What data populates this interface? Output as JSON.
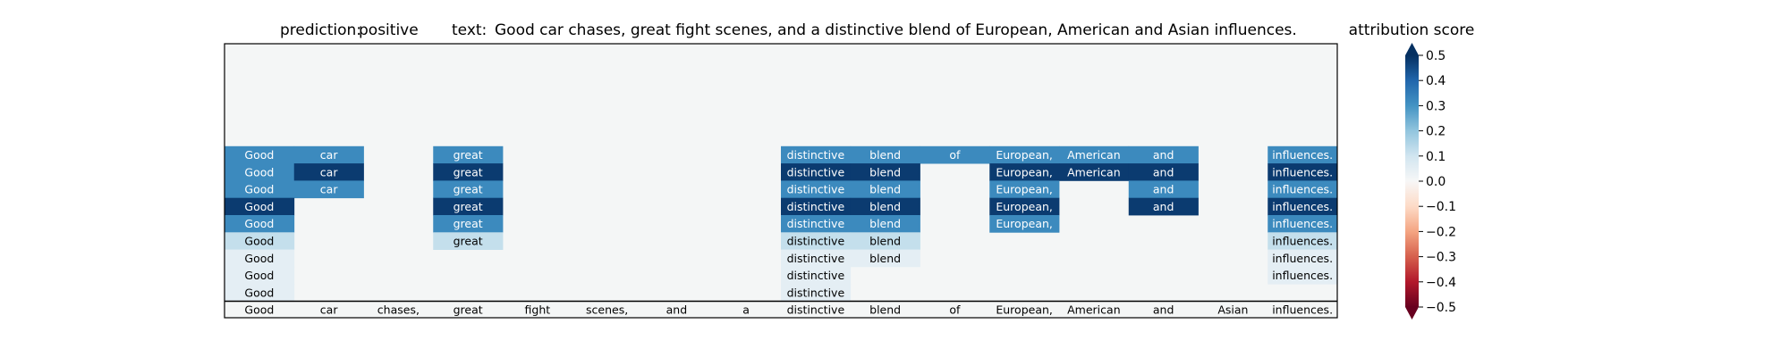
{
  "chart_data": {
    "type": "heatmap",
    "title": {
      "prediction_label": "prediction:",
      "prediction_value": "positive",
      "text_label": "text:",
      "text_value": "Good car chases, great fight scenes, and a distinctive blend of European, American and Asian influences."
    },
    "tokens": [
      "Good",
      "car",
      "chases,",
      "great",
      "fight",
      "scenes,",
      "and",
      "a",
      "distinctive",
      "blend",
      "of",
      "European,",
      "American",
      "and",
      "Asian",
      "influences."
    ],
    "background_color": "#f4f6f6",
    "rows_top_to_bottom": [
      [
        0.32,
        0.32,
        null,
        0.32,
        null,
        null,
        null,
        null,
        0.32,
        0.32,
        0.32,
        0.32,
        0.32,
        0.32,
        null,
        0.32
      ],
      [
        0.32,
        0.48,
        null,
        0.48,
        null,
        null,
        null,
        null,
        0.48,
        0.48,
        null,
        0.48,
        0.48,
        0.48,
        null,
        0.48
      ],
      [
        0.32,
        0.32,
        null,
        0.32,
        null,
        null,
        null,
        null,
        0.32,
        0.32,
        null,
        0.32,
        null,
        0.32,
        null,
        0.32
      ],
      [
        0.48,
        null,
        null,
        0.48,
        null,
        null,
        null,
        null,
        0.48,
        0.48,
        null,
        0.48,
        null,
        0.48,
        null,
        0.48
      ],
      [
        0.32,
        null,
        null,
        0.32,
        null,
        null,
        null,
        null,
        0.32,
        0.32,
        null,
        0.32,
        null,
        null,
        null,
        0.32
      ],
      [
        0.12,
        null,
        null,
        0.12,
        null,
        null,
        null,
        null,
        0.12,
        0.12,
        null,
        null,
        null,
        null,
        null,
        0.12
      ],
      [
        0.05,
        null,
        null,
        null,
        null,
        null,
        null,
        null,
        0.05,
        0.05,
        null,
        null,
        null,
        null,
        null,
        0.05
      ],
      [
        0.05,
        null,
        null,
        null,
        null,
        null,
        null,
        null,
        0.05,
        null,
        null,
        null,
        null,
        null,
        null,
        0.05
      ],
      [
        0.05,
        null,
        null,
        null,
        null,
        null,
        null,
        null,
        0.05,
        null,
        null,
        null,
        null,
        null,
        null,
        null
      ]
    ],
    "colorbar": {
      "label": "attribution score",
      "min": -0.5,
      "max": 0.5,
      "ticks": [
        0.5,
        0.4,
        0.3,
        0.2,
        0.1,
        0.0,
        -0.1,
        -0.2,
        -0.3,
        -0.4,
        -0.5
      ],
      "tick_labels": [
        "0.5",
        "0.4",
        "0.3",
        "0.2",
        "0.1",
        "0.0",
        "−0.1",
        "−0.2",
        "−0.3",
        "−0.4",
        "−0.5"
      ],
      "colormap": "RdBu",
      "colormap_stops": [
        "#67001f",
        "#b2182b",
        "#d6604d",
        "#f4a582",
        "#fddbc7",
        "#f7f7f7",
        "#d1e5f0",
        "#92c5de",
        "#4393c3",
        "#2166ac",
        "#053061"
      ]
    }
  }
}
